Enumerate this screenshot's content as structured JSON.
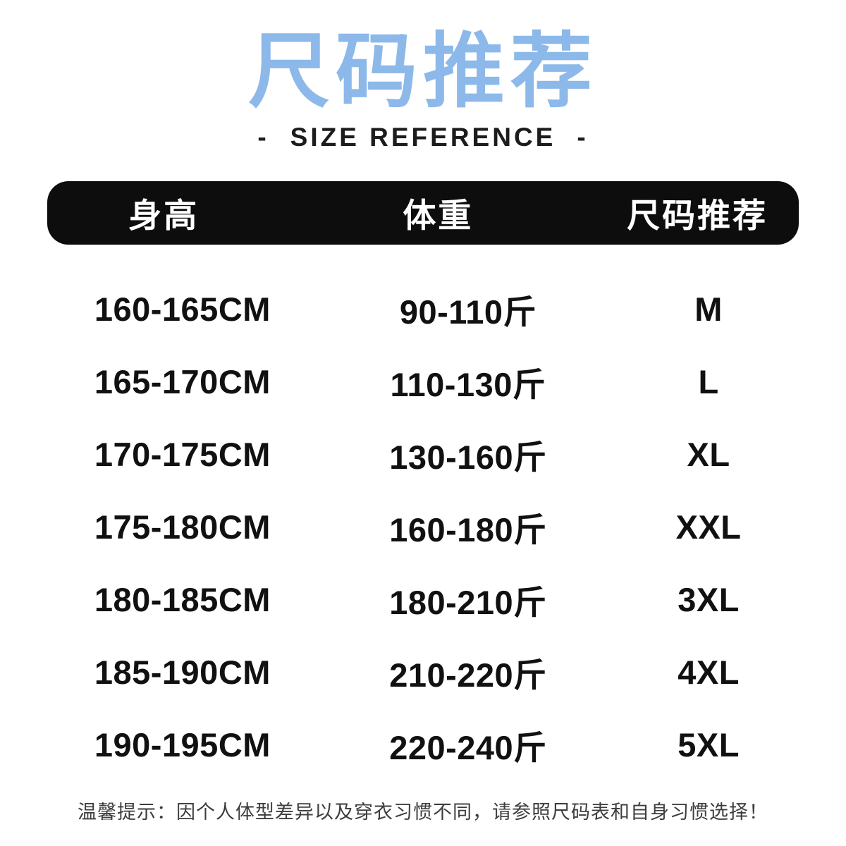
{
  "header": {
    "title": "尺码推荐",
    "subtitle": "SIZE REFERENCE",
    "dash": "-"
  },
  "colors": {
    "title_blue": "#8CB9E9",
    "header_bar_bg": "#0d0d0d",
    "header_bar_text": "#ffffff",
    "body_text": "#111111",
    "footer_text": "#3d3d3d",
    "background": "#ffffff"
  },
  "chart_data": {
    "type": "table",
    "title": "尺码推荐",
    "subtitle": "SIZE REFERENCE",
    "columns": [
      "身高",
      "体重",
      "尺码推荐"
    ],
    "rows": [
      [
        "160-165CM",
        "90-110斤",
        "M"
      ],
      [
        "165-170CM",
        "110-130斤",
        "L"
      ],
      [
        "170-175CM",
        "130-160斤",
        "XL"
      ],
      [
        "175-180CM",
        "160-180斤",
        "XXL"
      ],
      [
        "180-185CM",
        "180-210斤",
        "3XL"
      ],
      [
        "185-190CM",
        "210-220斤",
        "4XL"
      ],
      [
        "190-195CM",
        "220-240斤",
        "5XL"
      ]
    ]
  },
  "footer": {
    "note": "温馨提示：因个人体型差异以及穿衣习惯不同，请参照尺码表和自身习惯选择！"
  }
}
